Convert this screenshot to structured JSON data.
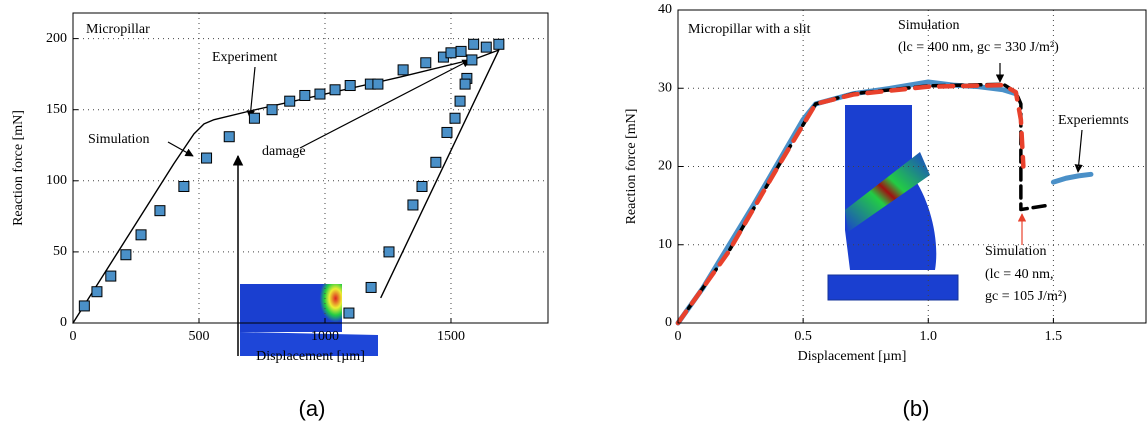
{
  "chart_data": [
    {
      "type": "line",
      "caption": "(a)",
      "xlabel": "Displacement [µm]",
      "ylabel": "Reaction force [mN]",
      "xlim": [
        0,
        1885
      ],
      "ylim": [
        0,
        218
      ],
      "xticks": [
        0,
        500,
        1000,
        1500
      ],
      "yticks": [
        0,
        50,
        100,
        150,
        200
      ],
      "grid": true,
      "annotations": [
        "Micropillar",
        "Experiment",
        "Simulation",
        "damage"
      ],
      "series": [
        {
          "marker": "line",
          "color": "#000000",
          "x": [
            0,
            200,
            400,
            480,
            520,
            560,
            700,
            1000,
            1300,
            1600,
            1690,
            1222
          ],
          "values": [
            0,
            56,
            112,
            133,
            140,
            143,
            149,
            161,
            173,
            186,
            192,
            18
          ]
        },
        {
          "marker": "square",
          "color": "#4a90c8",
          "x": [
            45,
            95,
            150,
            210,
            270,
            345,
            440,
            530,
            620,
            720,
            790,
            860,
            920,
            980,
            1040,
            1100,
            1180,
            1210,
            1310,
            1400,
            1470,
            1500,
            1540,
            1590,
            1640,
            1690,
            1583,
            1563,
            1556,
            1536,
            1516,
            1484,
            1440,
            1385,
            1349,
            1254,
            1183,
            1095
          ],
          "values": [
            12,
            22,
            33,
            48,
            62,
            79,
            96,
            116,
            131,
            144,
            150,
            156,
            160,
            161,
            164,
            167,
            168,
            168,
            178,
            183,
            187,
            190,
            191,
            196,
            194,
            196,
            185,
            172,
            168,
            156,
            144,
            134,
            113,
            96,
            83,
            50,
            25,
            7
          ]
        }
      ]
    },
    {
      "type": "line",
      "caption": "(b)",
      "xlabel": "Displacement [µm]",
      "ylabel": "Reaction force [mN]",
      "xlim": [
        0,
        1.87
      ],
      "ylim": [
        0,
        40
      ],
      "xticks": [
        0,
        0.5,
        {
          "value": 1,
          "label": "1.0"
        },
        1.5
      ],
      "yticks": [
        0,
        10,
        20,
        30,
        40
      ],
      "grid": true,
      "annotations": [
        "Micropillar with a slit",
        "Simulation",
        "(lc = 400 nm, gc = 330 J/m²)",
        "Experiemnts",
        "Simulation",
        "(lc = 40 nm,",
        "gc = 105 J/m²)"
      ],
      "series": [
        {
          "marker": "thick",
          "color": "#4a90c8",
          "x": [
            0,
            0.1,
            0.3,
            0.5,
            0.55,
            0.7,
            0.85,
            1.0,
            1.1,
            1.2,
            1.3,
            1.35,
            null,
            1.5,
            1.55,
            1.6,
            1.65
          ],
          "values": [
            0,
            4.5,
            15,
            26,
            28,
            29.3,
            30,
            30.8,
            30.4,
            30.2,
            29.8,
            29.3,
            null,
            18,
            18.5,
            18.8,
            19
          ]
        },
        {
          "marker": "line",
          "color": "#000000",
          "x": [
            0,
            0.2,
            0.4,
            0.55,
            0.7,
            1.0,
            1.3,
            1.35,
            1.37,
            1.37,
            1.47
          ],
          "values": [
            0,
            9,
            20,
            28,
            29.3,
            30.3,
            30.5,
            29.5,
            28,
            14.5,
            15
          ]
        },
        {
          "marker": "dash",
          "color": "#e8412c",
          "x": [
            0,
            0.2,
            0.4,
            0.55,
            0.7,
            1.0,
            1.3,
            1.35,
            1.37,
            1.38
          ],
          "values": [
            0,
            9,
            20,
            28,
            29.2,
            30.2,
            30.4,
            29.5,
            26,
            20
          ]
        }
      ]
    }
  ]
}
